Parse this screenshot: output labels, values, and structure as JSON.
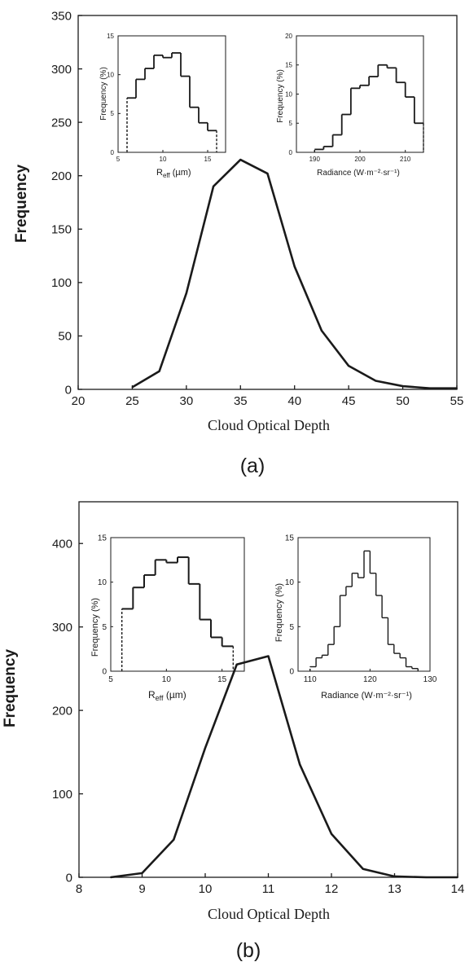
{
  "panels": [
    {
      "label": "(a)",
      "main": {
        "ylabel": "Frequency",
        "xlabel": "Cloud Optical Depth",
        "xlim": [
          20,
          55
        ],
        "ylim": [
          0,
          350
        ],
        "xticks": [
          20,
          25,
          30,
          35,
          40,
          45,
          50,
          55
        ],
        "yticks": [
          0,
          50,
          100,
          150,
          200,
          250,
          300,
          350
        ]
      },
      "insets": [
        {
          "ylabel": "Frequency (%)",
          "xlabel_main": "R",
          "xlabel_sub": "eff",
          "xlabel_rest": " (µm)",
          "xticks": [
            5,
            10,
            15
          ],
          "yticks": [
            0,
            5,
            10,
            15
          ]
        },
        {
          "ylabel": "Frequency (%)",
          "xlabel": "Radiance (W·m⁻²·sr⁻¹)",
          "xticks": [
            190,
            200,
            210
          ],
          "yticks": [
            0,
            5,
            10,
            15,
            20
          ]
        }
      ]
    },
    {
      "label": "(b)",
      "main": {
        "ylabel": "Frequency",
        "xlabel": "Cloud Optical Depth",
        "xlim": [
          8,
          14
        ],
        "ylim": [
          0,
          450
        ],
        "xticks": [
          8,
          9,
          10,
          11,
          12,
          13,
          14
        ],
        "yticks": [
          0,
          100,
          200,
          300,
          400
        ]
      },
      "insets": [
        {
          "ylabel": "Frequency (%)",
          "xlabel_main": "R",
          "xlabel_sub": "eff",
          "xlabel_rest": " (µm)",
          "xticks": [
            5,
            10,
            15
          ],
          "yticks": [
            0,
            5,
            10,
            15
          ]
        },
        {
          "ylabel": "Frequency (%)",
          "xlabel": "Radiance (W·m⁻²·sr⁻¹)",
          "xticks": [
            110,
            120,
            130
          ],
          "yticks": [
            0,
            5,
            10,
            15
          ]
        }
      ]
    }
  ],
  "chart_data": [
    {
      "type": "line",
      "panel": "(a)",
      "xlabel": "Cloud Optical Depth",
      "ylabel": "Frequency",
      "xlim": [
        20,
        55
      ],
      "ylim": [
        0,
        350
      ],
      "grid": false,
      "x": [
        25,
        27.5,
        30,
        32.5,
        35,
        37.5,
        40,
        42.5,
        45,
        47.5,
        50,
        52.5,
        55
      ],
      "values": [
        2,
        17,
        90,
        190,
        215,
        202,
        115,
        55,
        22,
        8,
        3,
        1,
        1
      ]
    },
    {
      "type": "bar",
      "panel": "(a) inset left",
      "xlabel": "Reff (µm)",
      "ylabel": "Frequency (%)",
      "xlim": [
        5,
        17
      ],
      "ylim": [
        0,
        15
      ],
      "edges": [
        6,
        7,
        8,
        9,
        10,
        11,
        12,
        13,
        14,
        15,
        16
      ],
      "values": [
        7,
        9.4,
        10.8,
        12.5,
        12.2,
        12.8,
        9.8,
        5.8,
        3.8,
        2.8
      ]
    },
    {
      "type": "bar",
      "panel": "(a) inset right",
      "xlabel": "Radiance (W·m⁻²·sr⁻¹)",
      "ylabel": "Frequency (%)",
      "xlim": [
        186,
        214
      ],
      "ylim": [
        0,
        20
      ],
      "edges": [
        190,
        192,
        194,
        196,
        198,
        200,
        202,
        204,
        206,
        208,
        210,
        212,
        214
      ],
      "values": [
        0.5,
        1,
        3,
        6.5,
        11,
        11.5,
        13,
        15,
        14.5,
        12,
        9.5,
        5
      ]
    },
    {
      "type": "line",
      "panel": "(b)",
      "xlabel": "Cloud Optical Depth",
      "ylabel": "Frequency",
      "xlim": [
        8,
        14
      ],
      "ylim": [
        0,
        450
      ],
      "grid": false,
      "x": [
        8.5,
        9,
        9.5,
        10,
        10.5,
        11,
        11.5,
        12,
        12.5,
        13,
        13.5,
        14
      ],
      "values": [
        0,
        5,
        45,
        155,
        255,
        265,
        135,
        52,
        10,
        1,
        0,
        0
      ]
    },
    {
      "type": "bar",
      "panel": "(b) inset left",
      "xlabel": "Reff (µm)",
      "ylabel": "Frequency (%)",
      "xlim": [
        5,
        17
      ],
      "ylim": [
        0,
        15
      ],
      "edges": [
        6,
        7,
        8,
        9,
        10,
        11,
        12,
        13,
        14,
        15,
        16
      ],
      "values": [
        7,
        9.4,
        10.8,
        12.5,
        12.2,
        12.8,
        9.8,
        5.8,
        3.8,
        2.8
      ]
    },
    {
      "type": "bar",
      "panel": "(b) inset right",
      "xlabel": "Radiance (W·m⁻²·sr⁻¹)",
      "ylabel": "Frequency (%)",
      "xlim": [
        108,
        130
      ],
      "ylim": [
        0,
        15
      ],
      "edges": [
        110,
        111,
        112,
        113,
        114,
        115,
        116,
        117,
        118,
        119,
        120,
        121,
        122,
        123,
        124,
        125,
        126,
        127,
        128
      ],
      "values": [
        0.5,
        1.5,
        1.8,
        3,
        5,
        8.5,
        9.5,
        11,
        10.5,
        13.5,
        11,
        8.5,
        6,
        3,
        2,
        1.5,
        0.5,
        0.3
      ]
    }
  ]
}
